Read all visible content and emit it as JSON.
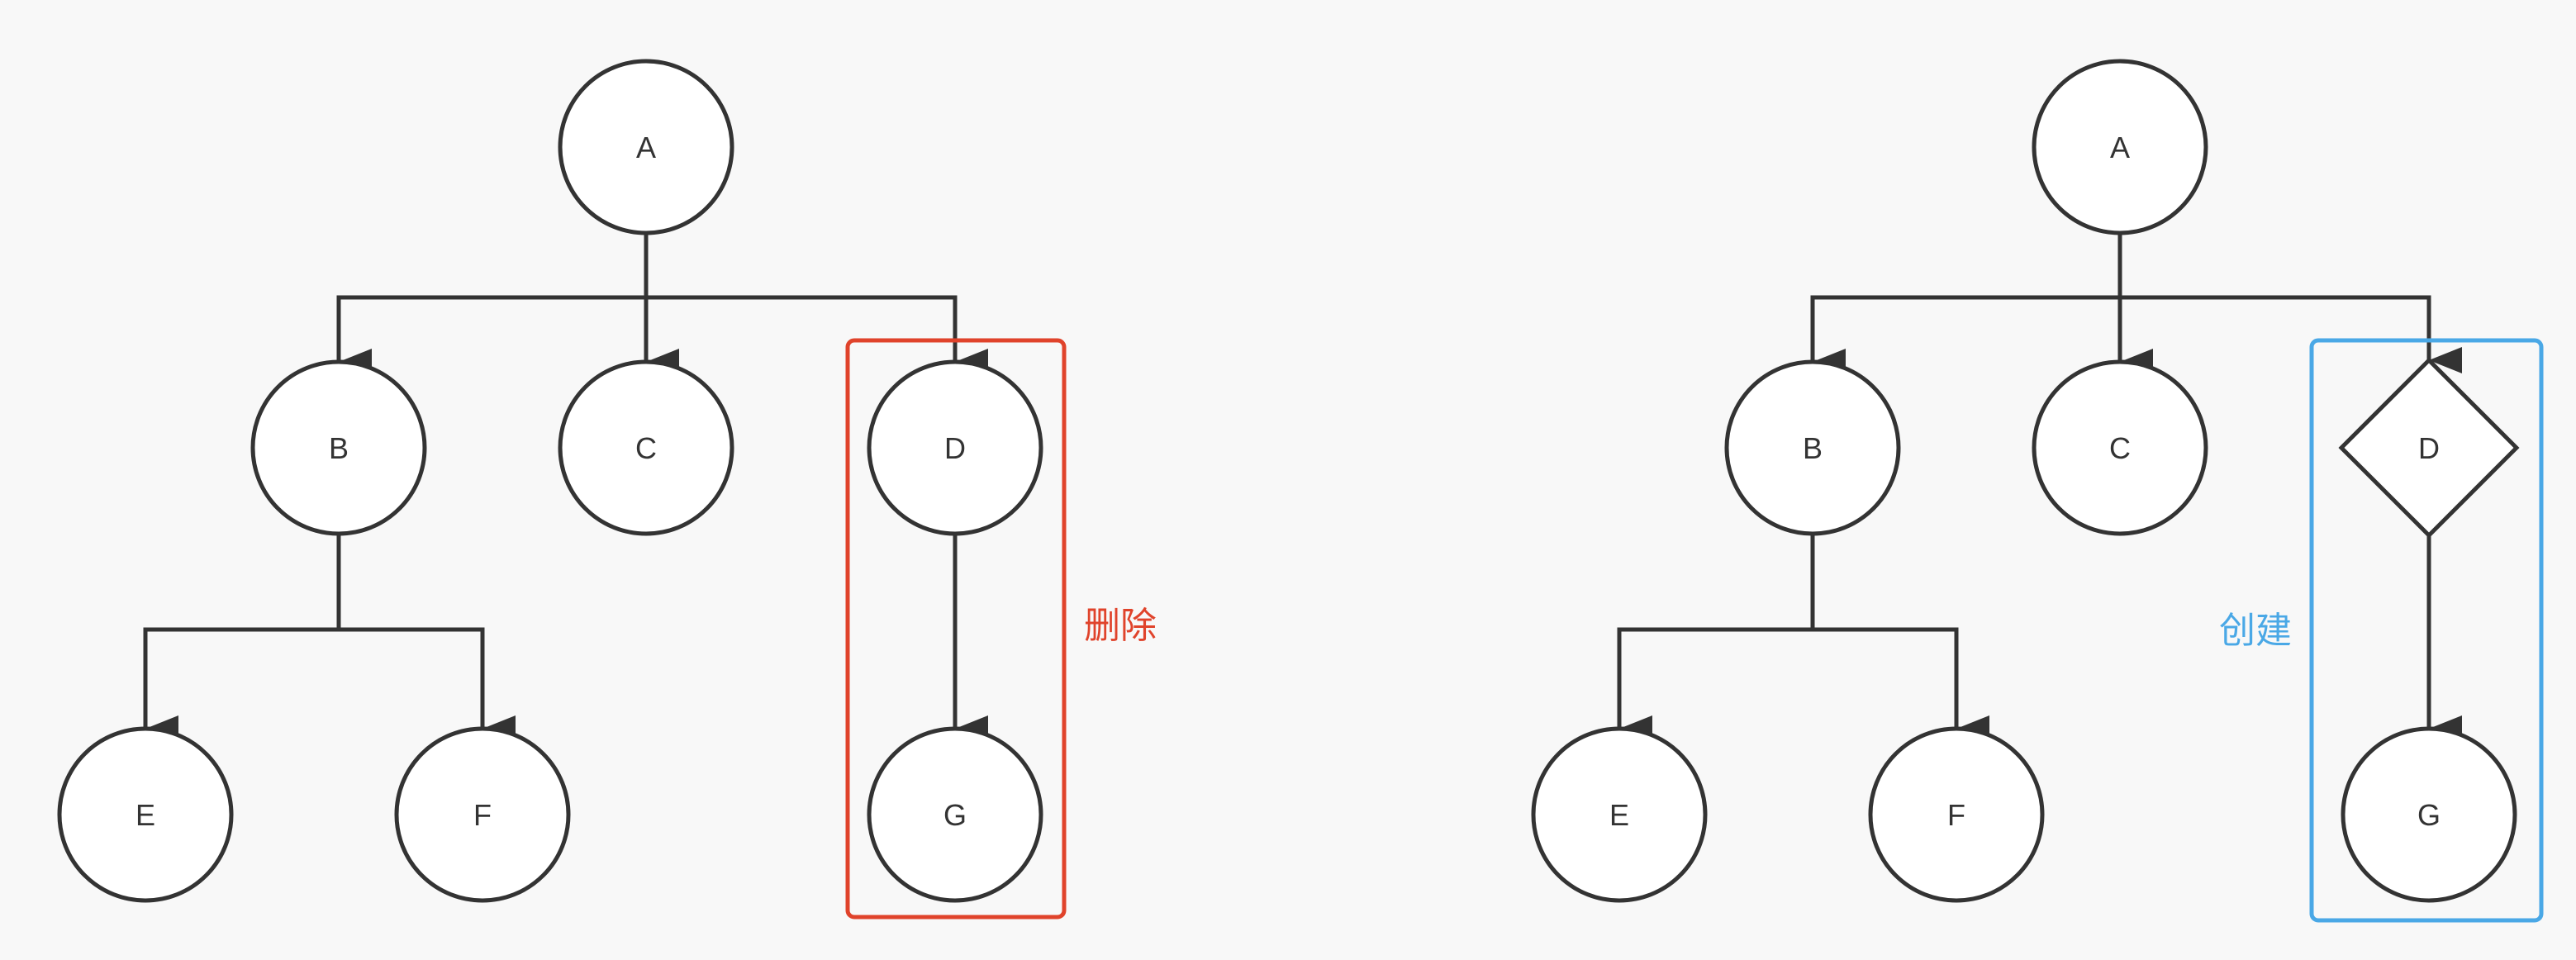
{
  "colors": {
    "background": "#f8f8f8",
    "stroke": "#333333",
    "delete_box": "#e0432b",
    "create_box": "#4aa8e6"
  },
  "diagrams": [
    {
      "id": "before",
      "nodes": [
        {
          "id": "A",
          "label": "A",
          "shape": "circle"
        },
        {
          "id": "B",
          "label": "B",
          "shape": "circle"
        },
        {
          "id": "C",
          "label": "C",
          "shape": "circle"
        },
        {
          "id": "D",
          "label": "D",
          "shape": "circle"
        },
        {
          "id": "E",
          "label": "E",
          "shape": "circle"
        },
        {
          "id": "F",
          "label": "F",
          "shape": "circle"
        },
        {
          "id": "G",
          "label": "G",
          "shape": "circle"
        }
      ],
      "edges": [
        {
          "from": "A",
          "to": "B"
        },
        {
          "from": "A",
          "to": "C"
        },
        {
          "from": "A",
          "to": "D"
        },
        {
          "from": "B",
          "to": "E"
        },
        {
          "from": "B",
          "to": "F"
        },
        {
          "from": "D",
          "to": "G"
        }
      ],
      "highlight": {
        "label": "删除",
        "color": "delete_box",
        "encloses": [
          "D",
          "G"
        ]
      }
    },
    {
      "id": "after",
      "nodes": [
        {
          "id": "A",
          "label": "A",
          "shape": "circle"
        },
        {
          "id": "B",
          "label": "B",
          "shape": "circle"
        },
        {
          "id": "C",
          "label": "C",
          "shape": "circle"
        },
        {
          "id": "D",
          "label": "D",
          "shape": "diamond"
        },
        {
          "id": "E",
          "label": "E",
          "shape": "circle"
        },
        {
          "id": "F",
          "label": "F",
          "shape": "circle"
        },
        {
          "id": "G",
          "label": "G",
          "shape": "circle"
        }
      ],
      "edges": [
        {
          "from": "A",
          "to": "B"
        },
        {
          "from": "A",
          "to": "C"
        },
        {
          "from": "A",
          "to": "D"
        },
        {
          "from": "B",
          "to": "E"
        },
        {
          "from": "B",
          "to": "F"
        },
        {
          "from": "D",
          "to": "G"
        }
      ],
      "highlight": {
        "label": "创建",
        "color": "create_box",
        "encloses": [
          "D",
          "G"
        ]
      }
    }
  ]
}
